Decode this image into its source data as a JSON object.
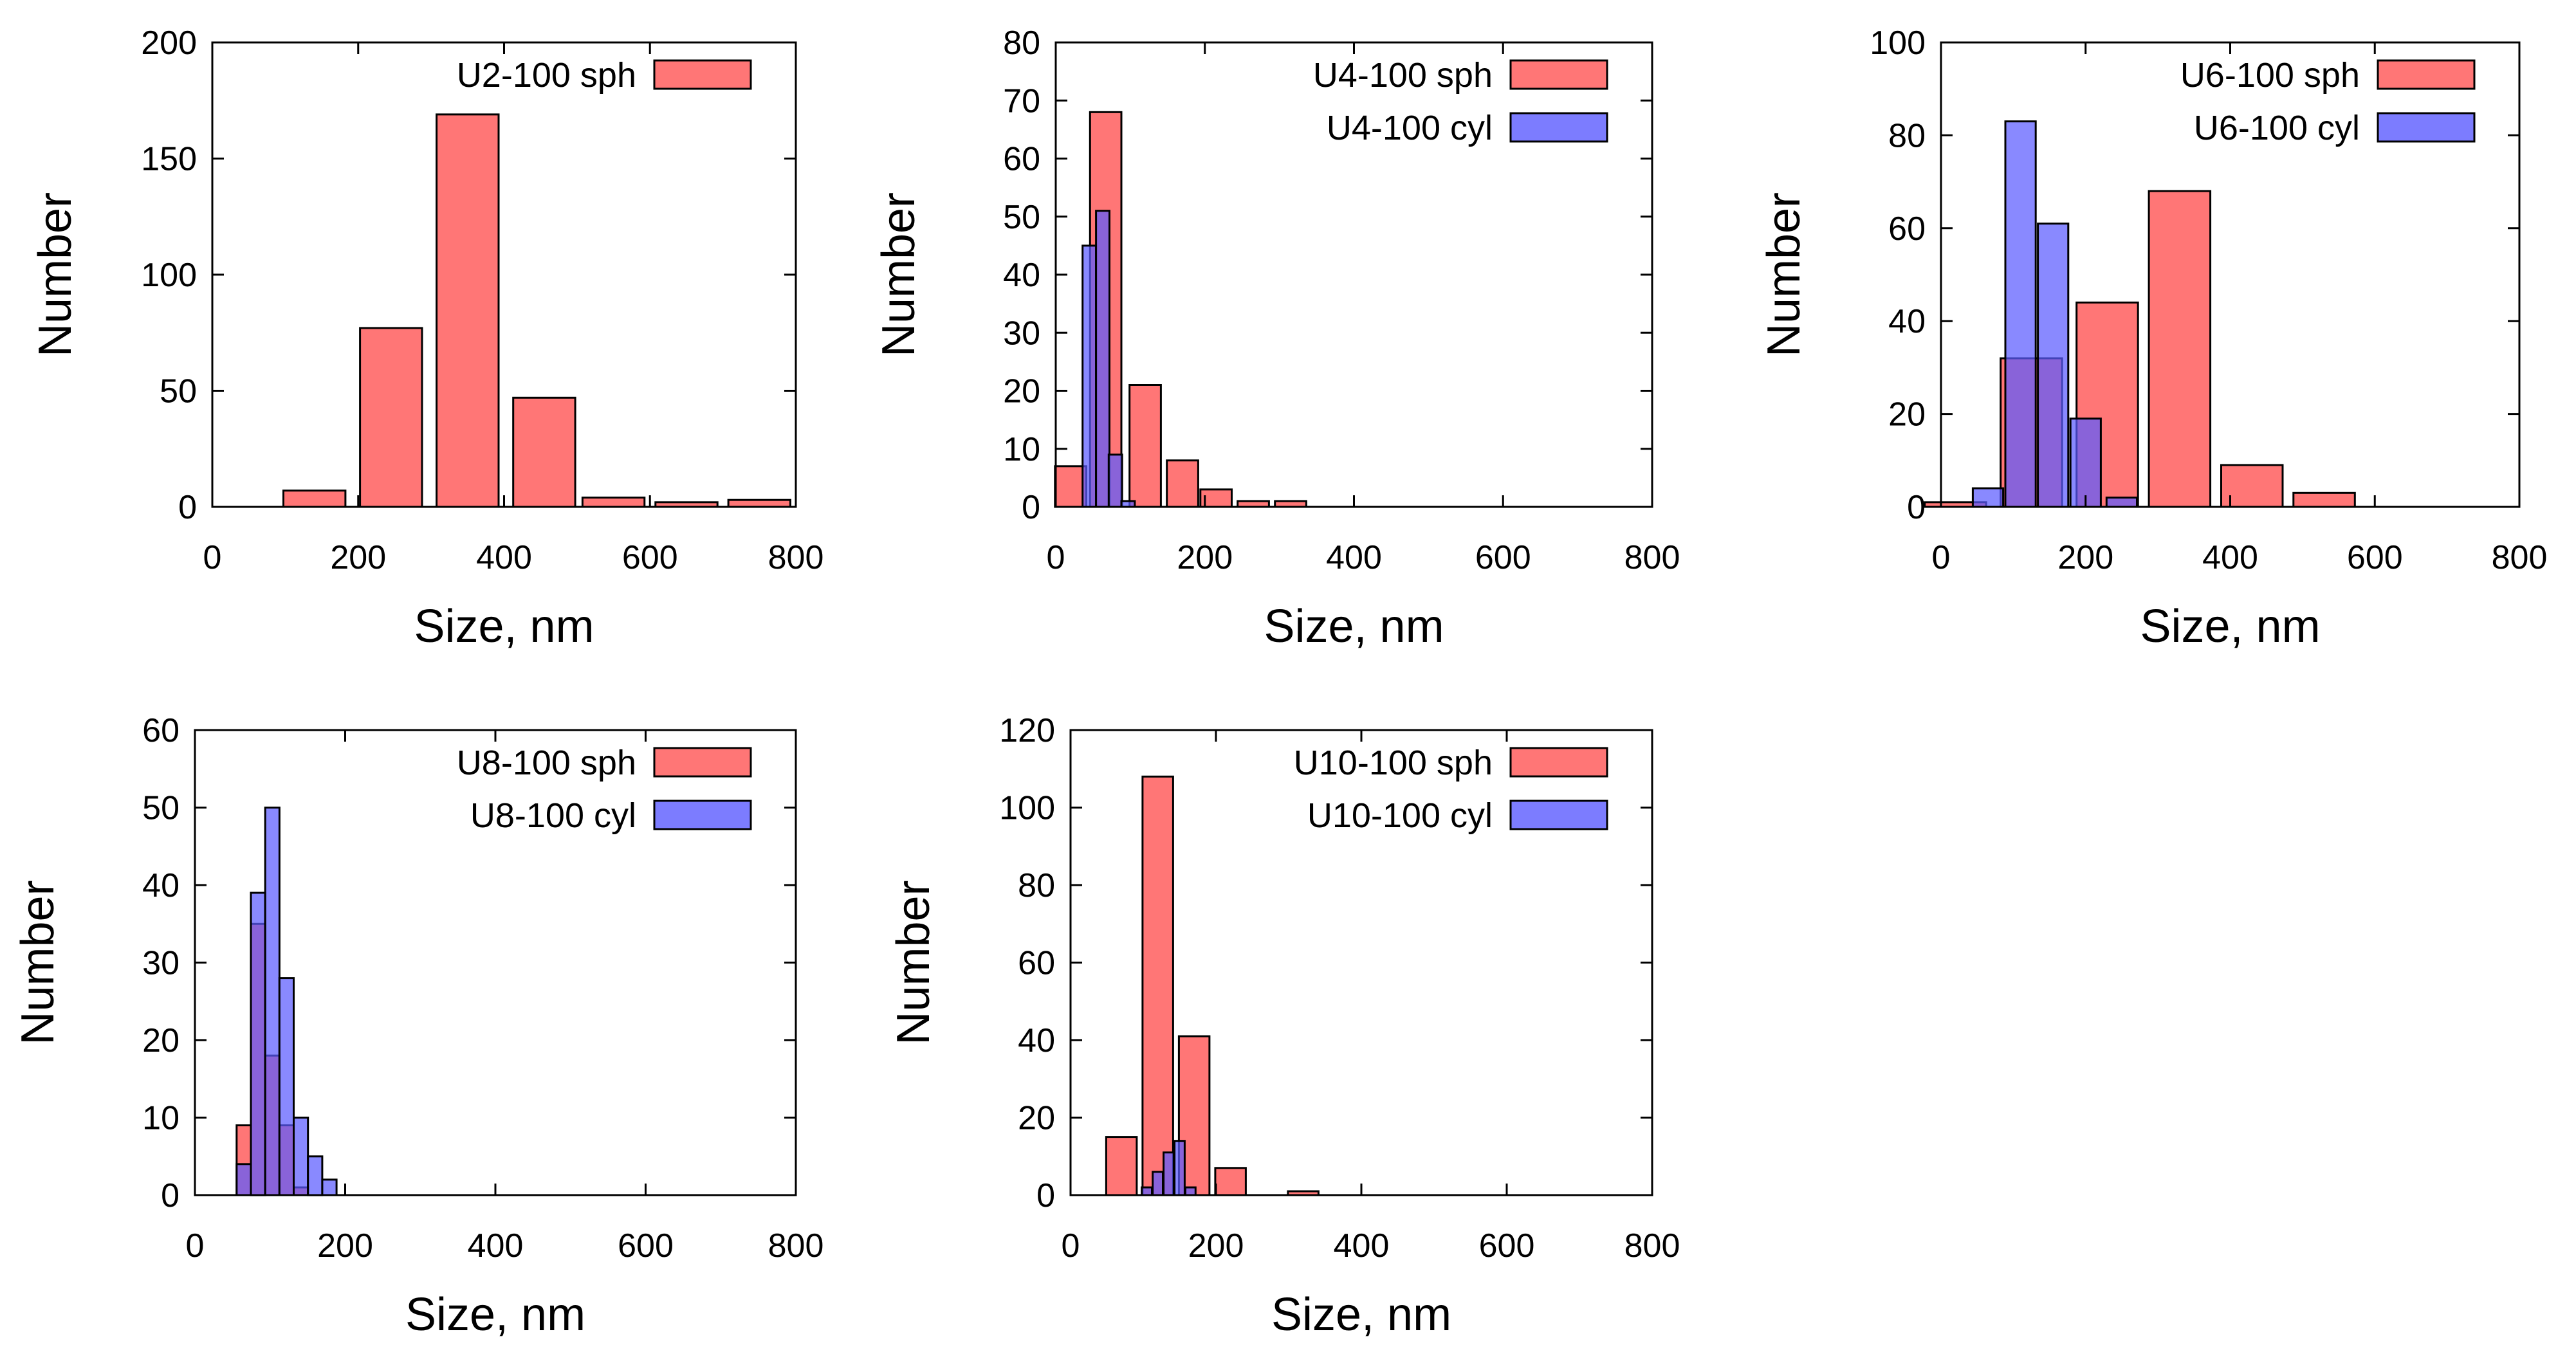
{
  "colors": {
    "sph_fill": "#ff6a6a",
    "cyl_fill": "#5b5bff",
    "edge": "#000000"
  },
  "chart_data": [
    {
      "type": "bar",
      "id": "U2",
      "xlabel": "Size, nm",
      "ylabel": "Number",
      "xlim": [
        0,
        800
      ],
      "ylim": [
        0,
        200
      ],
      "xticks": [
        0,
        200,
        400,
        600,
        800
      ],
      "yticks": [
        0,
        50,
        100,
        150,
        200
      ],
      "legend_position": "top-right",
      "series": [
        {
          "name": "U2-100 sph",
          "kind": "sph",
          "width": 85,
          "x": [
            140,
            245,
            350,
            455,
            550,
            650,
            750
          ],
          "values": [
            7,
            77,
            169,
            47,
            4,
            2,
            3
          ]
        }
      ]
    },
    {
      "type": "bar",
      "id": "U4",
      "xlabel": "Size, nm",
      "ylabel": "Number",
      "xlim": [
        0,
        800
      ],
      "ylim": [
        0,
        80
      ],
      "xticks": [
        0,
        200,
        400,
        600,
        800
      ],
      "yticks": [
        0,
        10,
        20,
        30,
        40,
        50,
        60,
        70,
        80
      ],
      "legend_position": "top-right",
      "series": [
        {
          "name": "U4-100 sph",
          "kind": "sph",
          "width": 42,
          "x": [
            20,
            67,
            120,
            170,
            215,
            265,
            315
          ],
          "values": [
            7,
            68,
            21,
            8,
            3,
            1,
            1
          ]
        },
        {
          "name": "U4-100 cyl",
          "kind": "cyl",
          "width": 18,
          "x": [
            45,
            63,
            80,
            97
          ],
          "values": [
            45,
            51,
            9,
            1
          ]
        }
      ]
    },
    {
      "type": "bar",
      "id": "U6",
      "xlabel": "Size, nm",
      "ylabel": "Number",
      "xlim": [
        0,
        800
      ],
      "ylim": [
        0,
        100
      ],
      "xticks": [
        0,
        200,
        400,
        600,
        800
      ],
      "yticks": [
        0,
        20,
        40,
        60,
        80,
        100
      ],
      "legend_position": "top-right",
      "series": [
        {
          "name": "U6-100 sph",
          "kind": "sph",
          "width": 85,
          "x": [
            20,
            125,
            230,
            330,
            430,
            530
          ],
          "values": [
            1,
            32,
            44,
            68,
            9,
            3
          ]
        },
        {
          "name": "U6-100 cyl",
          "kind": "cyl",
          "width": 42,
          "x": [
            65,
            110,
            155,
            200,
            250
          ],
          "values": [
            4,
            83,
            61,
            19,
            2
          ]
        }
      ]
    },
    {
      "type": "bar",
      "id": "U8",
      "xlabel": "Size, nm",
      "ylabel": "Number",
      "xlim": [
        0,
        800
      ],
      "ylim": [
        0,
        60
      ],
      "xticks": [
        0,
        200,
        400,
        600,
        800
      ],
      "yticks": [
        0,
        10,
        20,
        30,
        40,
        50,
        60
      ],
      "legend_position": "top-right",
      "series": [
        {
          "name": "U8-100 sph",
          "kind": "sph",
          "width": 19,
          "x": [
            65,
            84,
            103,
            122,
            141
          ],
          "values": [
            9,
            35,
            18,
            9,
            1
          ]
        },
        {
          "name": "U8-100 cyl",
          "kind": "cyl",
          "width": 19,
          "x": [
            65,
            84,
            103,
            122,
            141,
            160,
            179
          ],
          "values": [
            4,
            39,
            50,
            28,
            10,
            5,
            2
          ]
        }
      ]
    },
    {
      "type": "bar",
      "id": "U10",
      "xlabel": "Size, nm",
      "ylabel": "Number",
      "xlim": [
        0,
        800
      ],
      "ylim": [
        0,
        120
      ],
      "xticks": [
        0,
        200,
        400,
        600,
        800
      ],
      "yticks": [
        0,
        20,
        40,
        60,
        80,
        100,
        120
      ],
      "legend_position": "top-right",
      "series": [
        {
          "name": "U10-100 sph",
          "kind": "sph",
          "width": 42,
          "x": [
            70,
            120,
            170,
            220,
            320
          ],
          "values": [
            15,
            108,
            41,
            7,
            1
          ]
        },
        {
          "name": "U10-100 cyl",
          "kind": "cyl",
          "width": 14,
          "x": [
            105,
            120,
            135,
            150,
            165
          ],
          "values": [
            2,
            6,
            11,
            14,
            2
          ]
        }
      ]
    }
  ]
}
